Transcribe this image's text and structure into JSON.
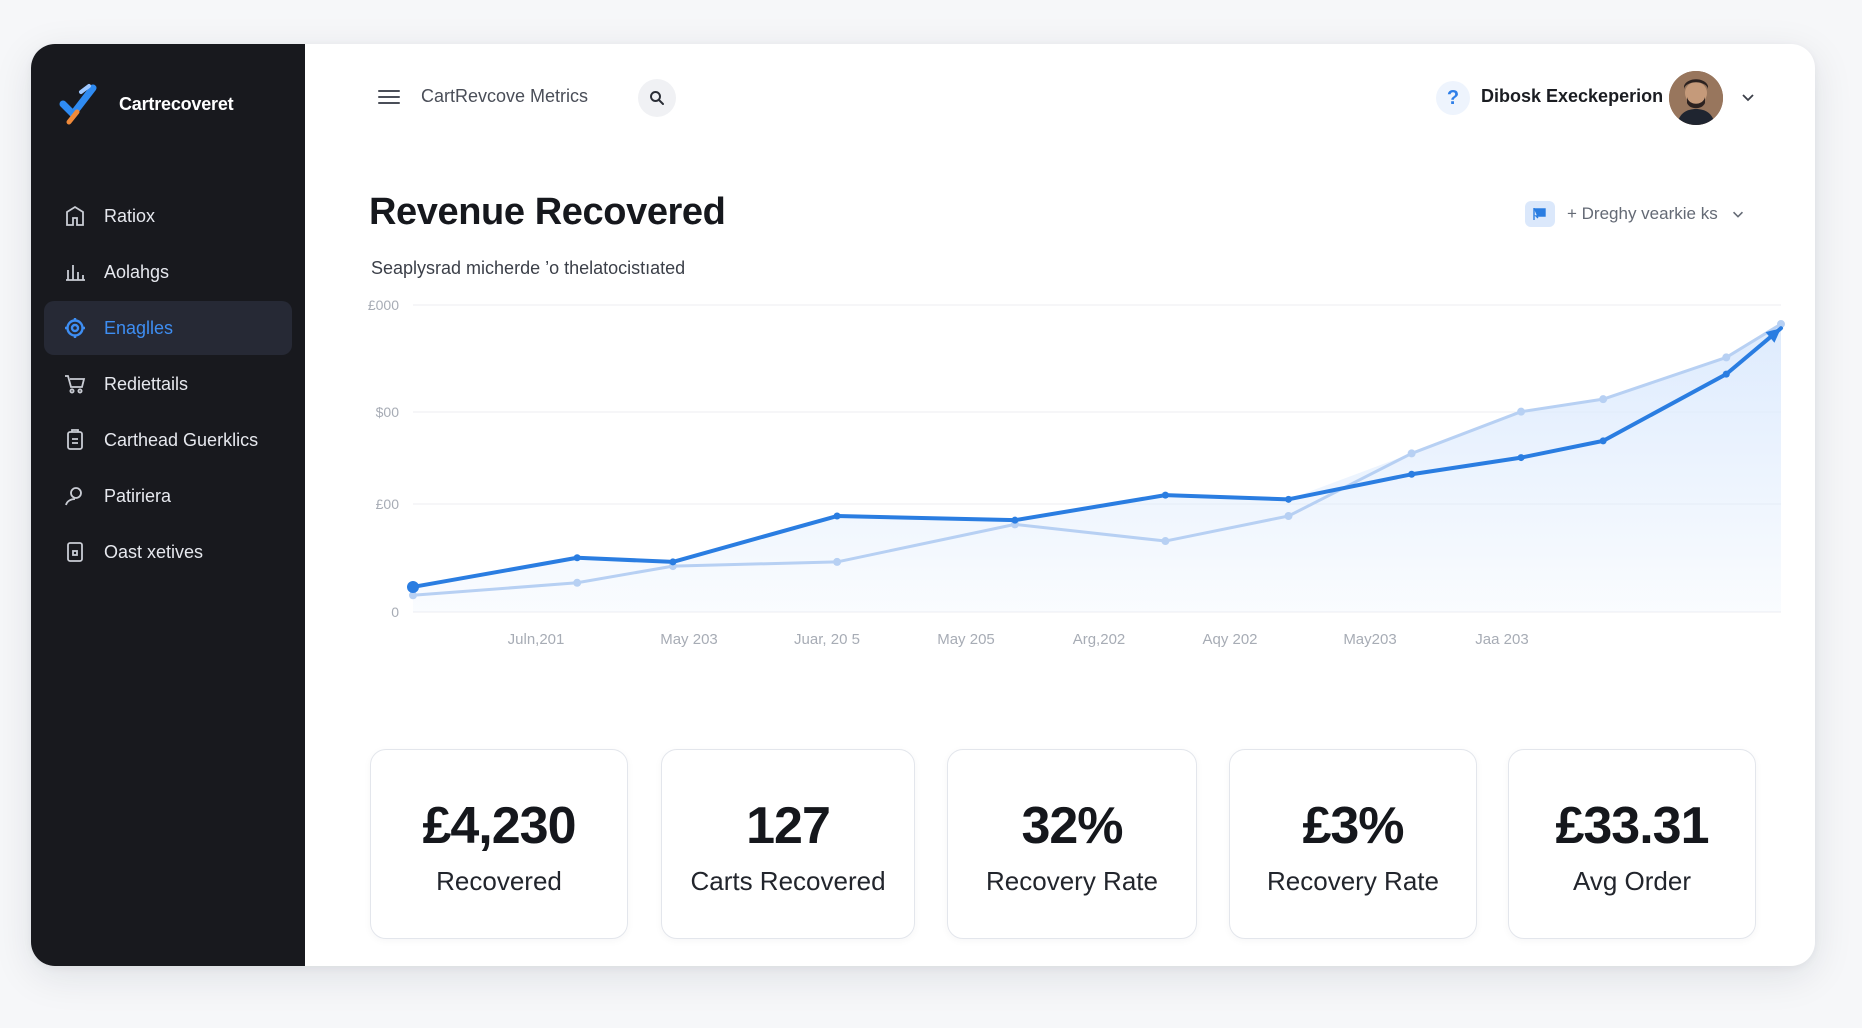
{
  "brand": {
    "name": "Cartrecoveret"
  },
  "sidebar": {
    "items": [
      {
        "label": "Ratiox",
        "icon": "home-icon",
        "active": false
      },
      {
        "label": "Aolahgs",
        "icon": "analytics-icon",
        "active": false
      },
      {
        "label": "Enaglles",
        "icon": "gear-icon",
        "active": true
      },
      {
        "label": "Rediettails",
        "icon": "cart-icon",
        "active": false
      },
      {
        "label": "Carthead Guerklics",
        "icon": "clipboard-icon",
        "active": false
      },
      {
        "label": "Patiriera",
        "icon": "user-icon",
        "active": false
      },
      {
        "label": "Oast xetives",
        "icon": "document-icon",
        "active": false
      }
    ]
  },
  "topbar": {
    "title": "CartRevcove Metrics",
    "user_name": "Dibosk Execkeperion"
  },
  "page": {
    "title": "Revenue Recovered",
    "subtitle": "Seaplysrad micherde ’o thelatocistıated",
    "range_label": "+ Dreghy vearkie ks"
  },
  "chart_data": {
    "type": "area",
    "y_tick_labels": [
      "£000",
      "$00",
      "£00",
      "0"
    ],
    "x_tick_labels": [
      "Juln,201",
      "May 203",
      "Juar, 20 5",
      "May 205",
      "Arg,202",
      "Aqy 202",
      "May203",
      "Jaa 203"
    ],
    "series": [
      {
        "values": [
          6,
          13,
          12,
          23,
          22,
          28,
          27,
          33,
          37,
          41,
          57,
          68
        ]
      },
      {
        "values": [
          4,
          7,
          11,
          12,
          21,
          17,
          23,
          38,
          48,
          51,
          61,
          69
        ]
      }
    ],
    "x_positions": [
      0,
      0.12,
      0.19,
      0.31,
      0.44,
      0.55,
      0.64,
      0.73,
      0.81,
      0.87,
      0.96,
      1.0
    ],
    "colors": {
      "primary": "#2a7de1",
      "secondary": "#b7d0f3",
      "fill": "#dceafd"
    }
  },
  "kpis": [
    {
      "value": "£4,230",
      "label": "Recovered"
    },
    {
      "value": "127",
      "label": "Carts Recovered"
    },
    {
      "value": "32%",
      "label": "Recovery Rate"
    },
    {
      "value": "£3%",
      "label": "Recovery Rate"
    },
    {
      "value": "£33.31",
      "label": "Avg Order"
    }
  ]
}
